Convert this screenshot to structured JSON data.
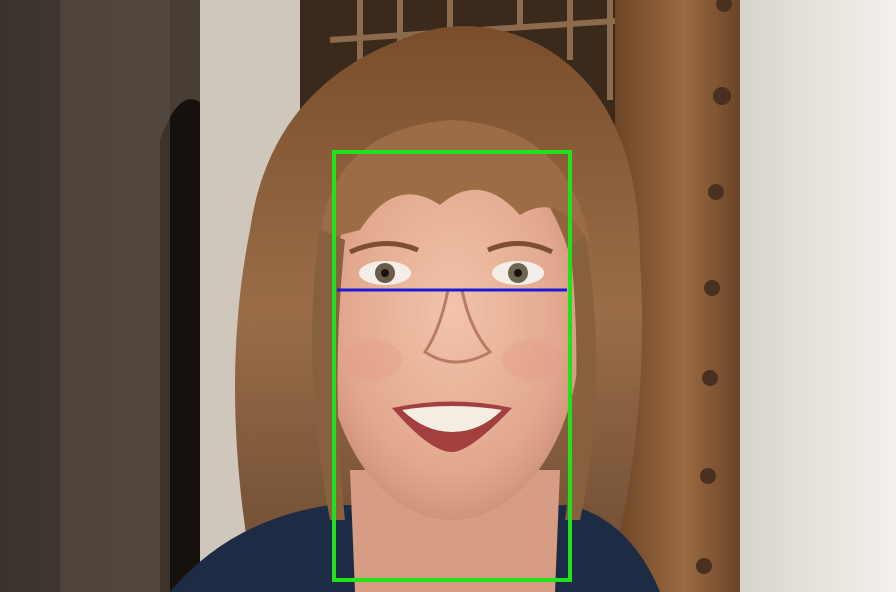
{
  "overlay": {
    "face_box_color": "#22e01a",
    "eye_line_color": "#1a1ad8"
  },
  "scene": {
    "wall_color": "#ece6dc",
    "wood_color": "#8a5a34",
    "hair_color": "#8a5a36",
    "skin_color": "#e8b39b"
  }
}
